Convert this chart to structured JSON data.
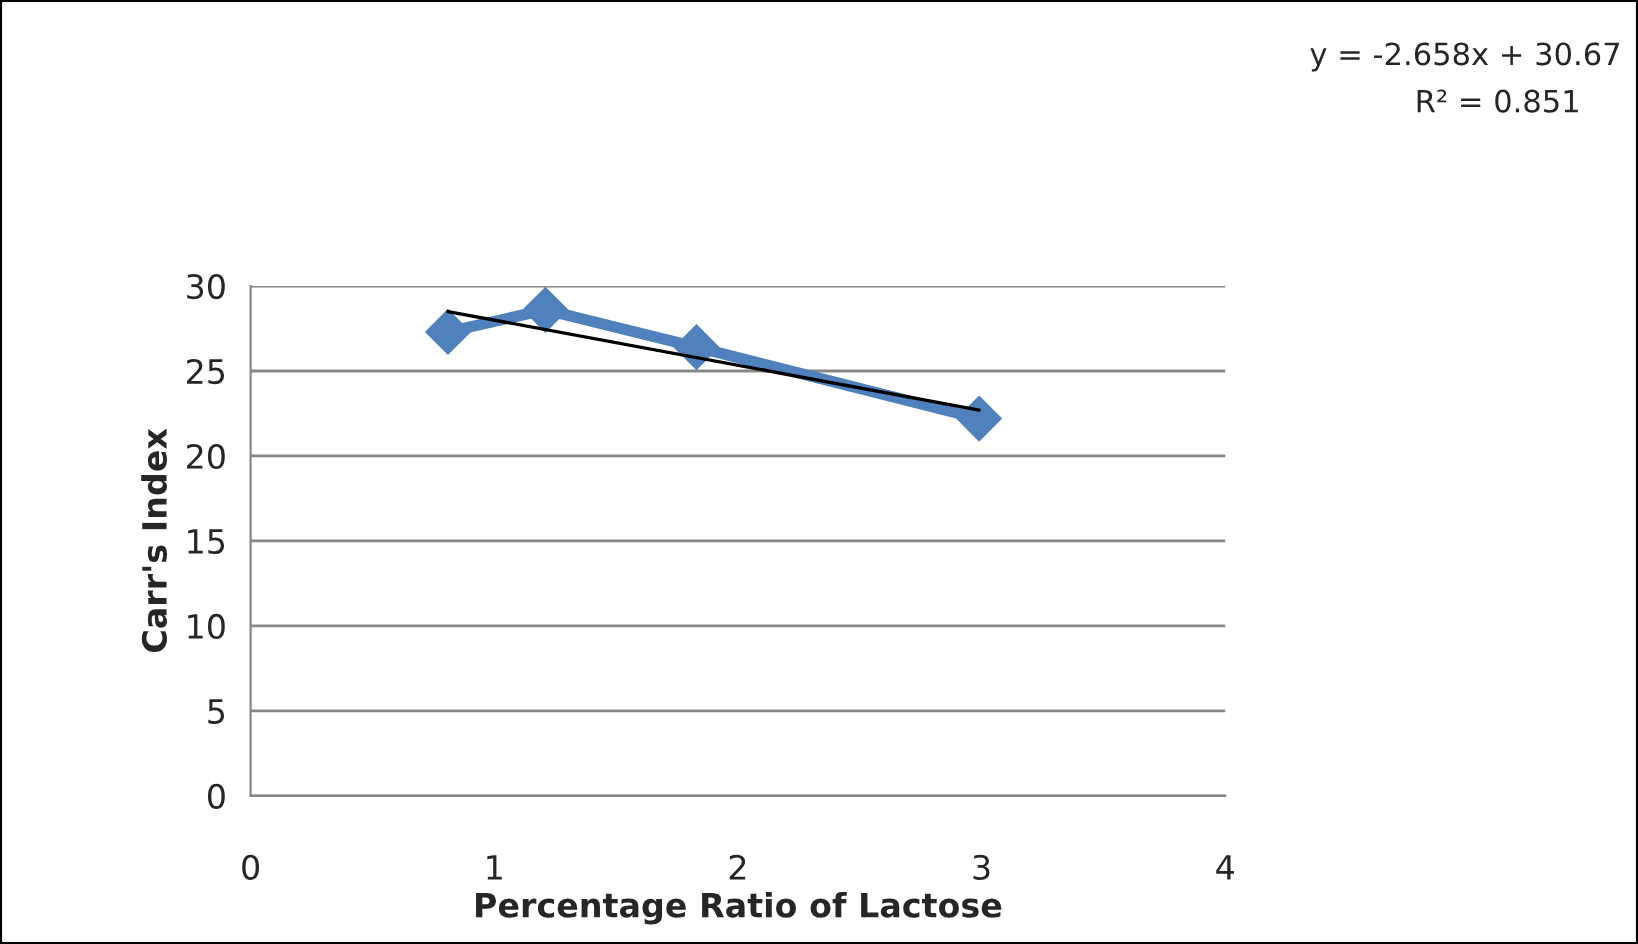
{
  "chart_data": {
    "type": "line",
    "xlabel": "Percentage Ratio of Lactose",
    "ylabel": "Carr's Index",
    "series": [
      {
        "color": "#4f81bd",
        "x": [
          0.81,
          1.21,
          1.83,
          2.99
        ],
        "values": [
          27.3,
          28.6,
          26.4,
          22.2
        ],
        "marker": "diamond"
      },
      {
        "color": "#000000",
        "x": [
          0.81,
          2.99
        ],
        "values": [
          28.5,
          22.7
        ],
        "marker": "none"
      }
    ],
    "xlim": [
      0,
      4
    ],
    "xticks": [
      0,
      1,
      2,
      3,
      4
    ],
    "ylim": [
      0,
      30
    ],
    "yticks": [
      0,
      5,
      10,
      15,
      20,
      25,
      30
    ],
    "grid": "y",
    "legend": false,
    "annotations": [
      "y = -2.658x + 30.67",
      "R² = 0.851"
    ]
  }
}
